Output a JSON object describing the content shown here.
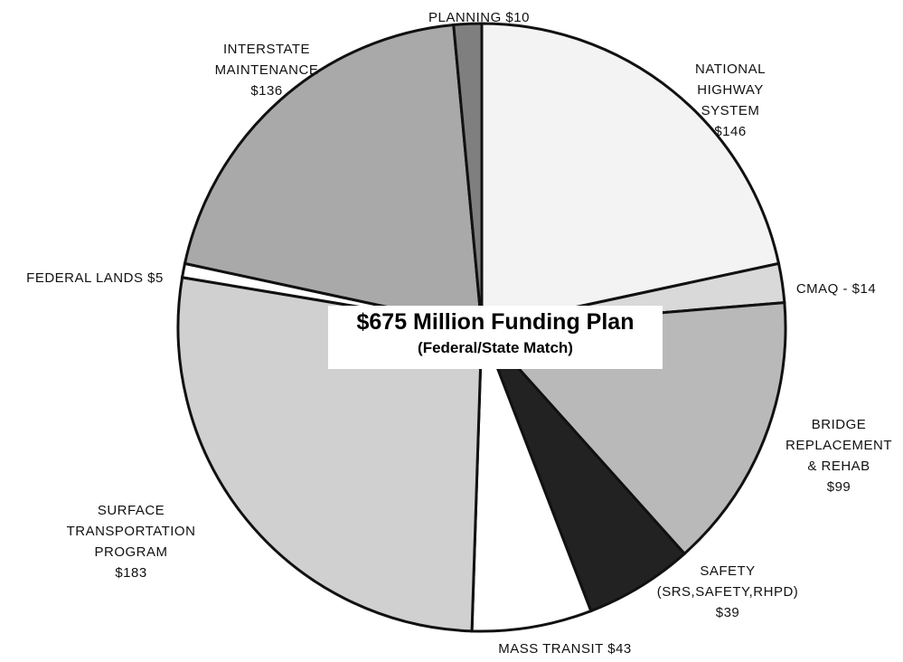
{
  "chart_data": {
    "type": "pie",
    "title": "$675 Million Funding Plan",
    "subtitle": "(Federal/State Match)",
    "categories": [
      "NATIONAL HIGHWAY SYSTEM",
      "CMAQ -",
      "BRIDGE REPLACEMENT & REHAB",
      "SAFETY (SRS,SAFETY,RHPD)",
      "MASS TRANSIT",
      "SURFACE TRANSPORTATION PROGRAM",
      "FEDERAL LANDS",
      "INTERSTATE MAINTENANCE",
      "PLANNING"
    ],
    "values": [
      146,
      14,
      99,
      39,
      43,
      183,
      5,
      136,
      10
    ],
    "value_labels": [
      "$146",
      "$14",
      "$99",
      "$39",
      "$43",
      "$183",
      "$5",
      "$136",
      "$10"
    ],
    "colors": [
      "#f3f3f3",
      "#d9d9d9",
      "#b9b9b9",
      "#222222",
      "#ffffff",
      "#d0d0d0",
      "#ffffff",
      "#a9a9a9",
      "#7f7f7f"
    ]
  }
}
